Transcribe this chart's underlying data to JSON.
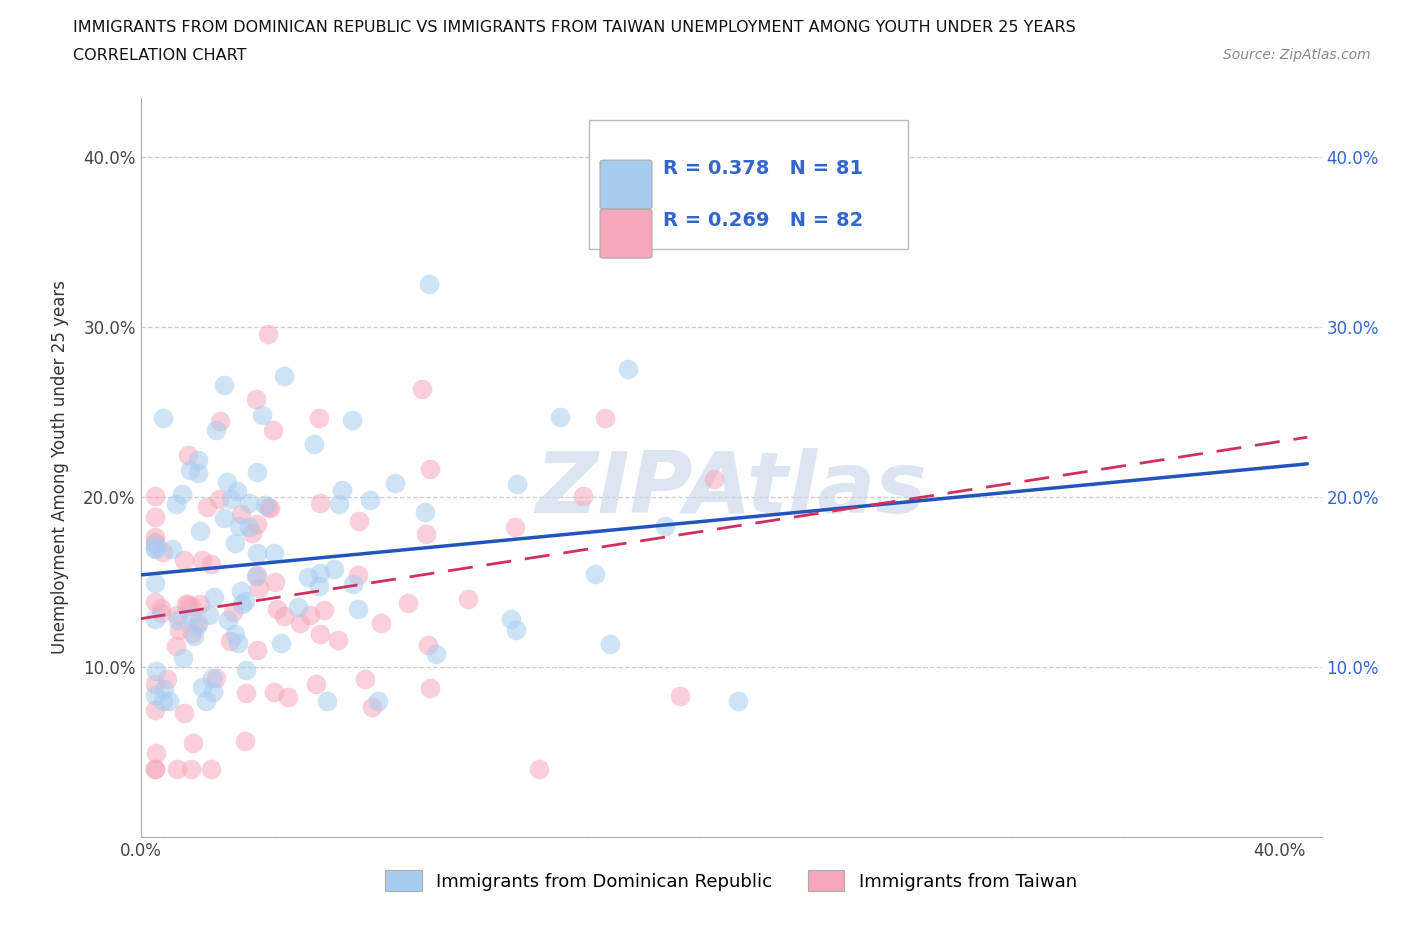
{
  "title_line1": "IMMIGRANTS FROM DOMINICAN REPUBLIC VS IMMIGRANTS FROM TAIWAN UNEMPLOYMENT AMONG YOUTH UNDER 25 YEARS",
  "title_line2": "CORRELATION CHART",
  "source_text": "Source: ZipAtlas.com",
  "ylabel": "Unemployment Among Youth under 25 years",
  "xlim": [
    0.0,
    0.415
  ],
  "ylim": [
    0.0,
    0.435
  ],
  "series1_label": "Immigrants from Dominican Republic",
  "series2_label": "Immigrants from Taiwan",
  "series1_color": "#a8ccf0",
  "series2_color": "#f5a8bb",
  "series1_line_color": "#2255bb",
  "series2_line_color": "#d03060",
  "series1_R": 0.378,
  "series1_N": 81,
  "series2_R": 0.269,
  "series2_N": 82,
  "legend_text_color": "#3366cc",
  "watermark": "ZIPAtlas",
  "watermark_color": "#ccd8ea",
  "background_color": "#ffffff",
  "grid_color": "#cccccc",
  "spine_color": "#aaaaaa"
}
